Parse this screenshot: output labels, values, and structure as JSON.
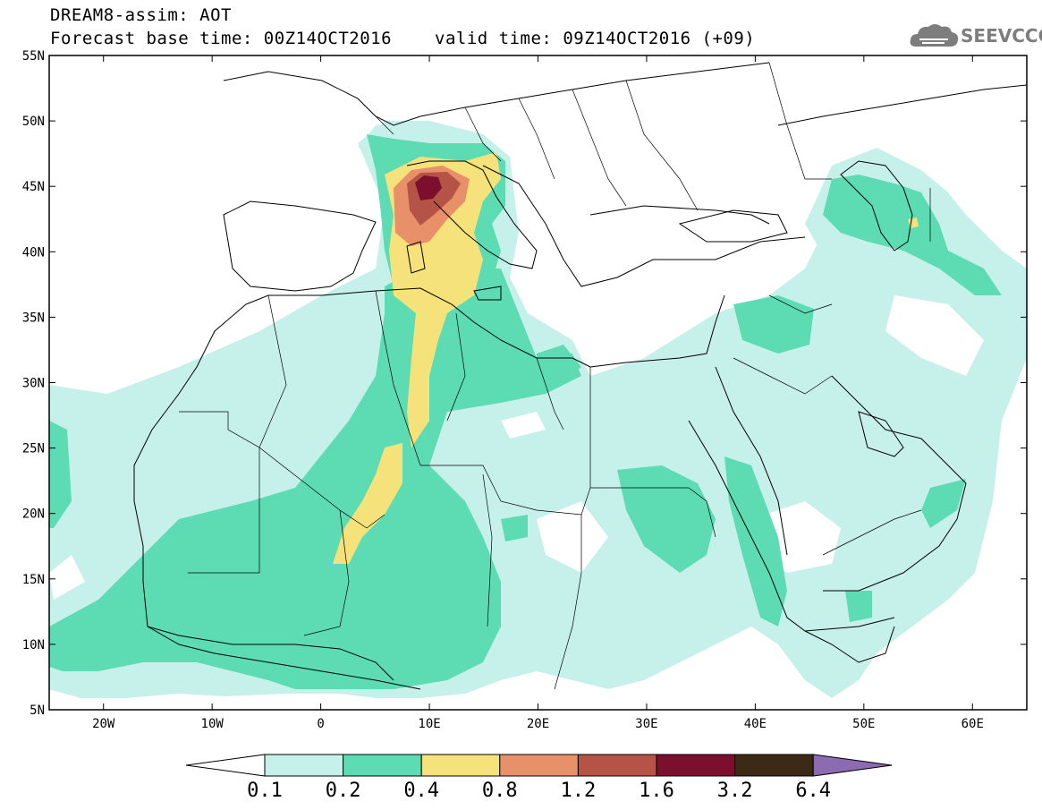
{
  "header": {
    "title": "DREAM8-assim: AOT",
    "base_time": "Forecast base time: 00Z14OCT2016",
    "valid_time": "valid time: 09Z14OCT2016 (+09)"
  },
  "logo": {
    "text": "SEEVCCC",
    "icon": "cloud-icon"
  },
  "map": {
    "lat_labels": [
      "55N",
      "50N",
      "45N",
      "40N",
      "35N",
      "30N",
      "25N",
      "20N",
      "15N",
      "10N",
      "5N"
    ],
    "lon_labels": [
      "20W",
      "10W",
      "0",
      "10E",
      "20E",
      "30E",
      "40E",
      "50E",
      "60E"
    ],
    "lon_range": [
      -25,
      65
    ],
    "lat_range": [
      5,
      55
    ],
    "field": "AOT (aerosol optical thickness)"
  },
  "colorbar": {
    "levels": [
      "0.1",
      "0.2",
      "0.4",
      "0.8",
      "1.2",
      "1.6",
      "3.2",
      "6.4"
    ],
    "colors": [
      "#c6f0ea",
      "#5ddcb4",
      "#f6e27a",
      "#e8906a",
      "#b55446",
      "#7d0f2e",
      "#3c2a17",
      "#8c6bb3"
    ],
    "under_color": "#ffffff"
  }
}
